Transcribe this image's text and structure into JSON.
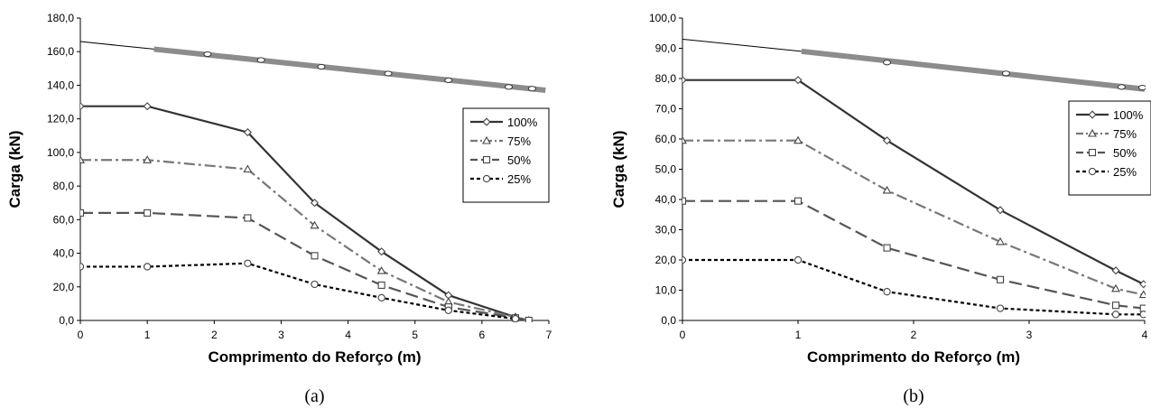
{
  "chart_data": [
    {
      "type": "line",
      "caption": "(a)",
      "xlabel": "Comprimento do Reforço (m)",
      "ylabel": "Carga (kN)",
      "xlim": [
        0,
        7
      ],
      "ylim": [
        0,
        180
      ],
      "xticks": [
        "0",
        "1",
        "2",
        "3",
        "4",
        "5",
        "6",
        "7"
      ],
      "yticks": [
        "0,0",
        "20,0",
        "40,0",
        "60,0",
        "80,0",
        "100,0",
        "120,0",
        "140,0",
        "160,0",
        "180,0"
      ],
      "grid": false,
      "legend_position": "right",
      "upper_line": {
        "thin": {
          "x": [
            0,
            1.1
          ],
          "y": [
            166,
            161.5
          ]
        },
        "thick": {
          "x": [
            1.1,
            6.95
          ],
          "y": [
            161.5,
            137
          ]
        },
        "markers": {
          "x": [
            1.9,
            2.7,
            3.6,
            4.6,
            5.5,
            6.4,
            6.75
          ],
          "y": [
            158.5,
            155,
            151,
            147,
            143,
            139,
            138
          ]
        }
      },
      "series": [
        {
          "name": "100%",
          "marker": "diamond",
          "dash": "solid",
          "color": "#333333",
          "x": [
            0,
            1,
            2.5,
            3.5,
            4.5,
            5.5,
            6.5,
            6.7
          ],
          "y": [
            127.5,
            127.5,
            112,
            70,
            41,
            15,
            2,
            0
          ]
        },
        {
          "name": "75%",
          "marker": "triangle",
          "dash": "dashdot",
          "color": "#777777",
          "x": [
            0,
            1,
            2.5,
            3.5,
            4.5,
            5.5,
            6.5,
            6.7
          ],
          "y": [
            95.5,
            95.5,
            90,
            56.5,
            29.5,
            11,
            2,
            0
          ]
        },
        {
          "name": "50%",
          "marker": "square",
          "dash": "dashed",
          "color": "#555555",
          "x": [
            0,
            1,
            2.5,
            3.5,
            4.5,
            5.5,
            6.5,
            6.7
          ],
          "y": [
            64,
            64,
            61,
            38.5,
            21,
            8,
            1.5,
            0
          ]
        },
        {
          "name": "25%",
          "marker": "circle",
          "dash": "dotted",
          "color": "#000000",
          "x": [
            0,
            1,
            2.5,
            3.5,
            4.5,
            5.5,
            6.5
          ],
          "y": [
            32,
            32,
            34,
            21.5,
            13.5,
            6,
            1
          ]
        }
      ]
    },
    {
      "type": "line",
      "caption": "(b)",
      "xlabel": "Comprimento do Reforço (m)",
      "ylabel": "Carga (kN)",
      "xlim": [
        0,
        4
      ],
      "ylim": [
        0,
        100
      ],
      "xticks": [
        "0",
        "1",
        "2",
        "3",
        "4"
      ],
      "yticks": [
        "0,0",
        "10,0",
        "20,0",
        "30,0",
        "40,0",
        "50,0",
        "60,0",
        "70,0",
        "80,0",
        "90,0",
        "100,0"
      ],
      "grid": false,
      "legend_position": "right",
      "upper_line": {
        "thin": {
          "x": [
            0,
            1.03
          ],
          "y": [
            93,
            89
          ]
        },
        "thick": {
          "x": [
            1.03,
            4
          ],
          "y": [
            89,
            76.5
          ]
        },
        "markers": {
          "x": [
            1.77,
            2.8,
            3.8,
            3.98
          ],
          "y": [
            85.3,
            81.7,
            77.2,
            77
          ]
        }
      },
      "series": [
        {
          "name": "100%",
          "marker": "diamond",
          "dash": "solid",
          "color": "#333333",
          "x": [
            0,
            1,
            1.77,
            2.75,
            3.75,
            3.99
          ],
          "y": [
            79.5,
            79.5,
            59.5,
            36.5,
            16.5,
            12
          ]
        },
        {
          "name": "75%",
          "marker": "triangle",
          "dash": "dashdot",
          "color": "#777777",
          "x": [
            0,
            1,
            1.77,
            2.75,
            3.75,
            3.99
          ],
          "y": [
            59.5,
            59.5,
            43,
            26,
            10.5,
            8.5
          ]
        },
        {
          "name": "50%",
          "marker": "square",
          "dash": "dashed",
          "color": "#555555",
          "x": [
            0,
            1,
            1.77,
            2.75,
            3.75,
            3.99
          ],
          "y": [
            39.5,
            39.5,
            24,
            13.5,
            5,
            4
          ]
        },
        {
          "name": "25%",
          "marker": "circle",
          "dash": "dotted",
          "color": "#000000",
          "x": [
            0,
            1,
            1.77,
            2.75,
            3.75,
            3.99
          ],
          "y": [
            20,
            20,
            9.5,
            4,
            2,
            2
          ]
        }
      ]
    }
  ]
}
